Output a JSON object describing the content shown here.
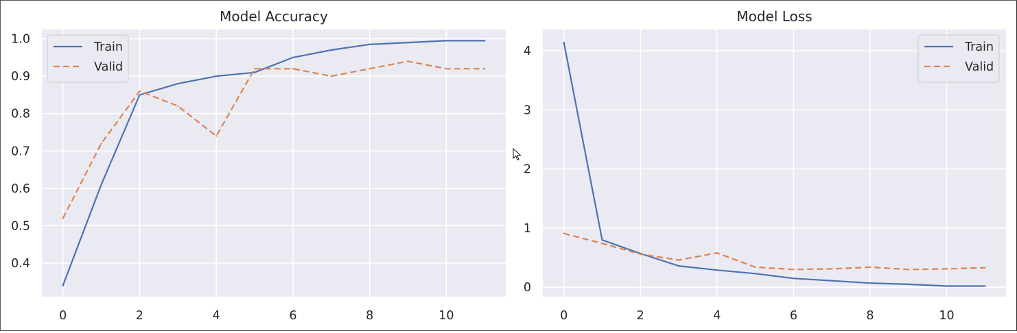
{
  "chart_data": [
    {
      "type": "line",
      "title": "Model Accuracy",
      "xlabel": "",
      "ylabel": "",
      "x": [
        0,
        1,
        2,
        3,
        4,
        5,
        6,
        7,
        8,
        9,
        10,
        11
      ],
      "xlim": [
        -0.55,
        11.55
      ],
      "ylim": [
        0.31,
        1.025
      ],
      "xticks": [
        0,
        2,
        4,
        6,
        8,
        10
      ],
      "yticks": [
        0.4,
        0.5,
        0.6,
        0.7,
        0.8,
        0.9,
        1.0
      ],
      "ytick_labels": [
        "0.4",
        "0.5",
        "0.6",
        "0.7",
        "0.8",
        "0.9",
        "1.0"
      ],
      "grid": true,
      "legend_position": "top-left",
      "series": [
        {
          "name": "Train",
          "color": "#4c72b0",
          "style": "solid",
          "values": [
            0.34,
            0.61,
            0.85,
            0.88,
            0.9,
            0.91,
            0.95,
            0.97,
            0.985,
            0.99,
            0.995,
            0.995
          ]
        },
        {
          "name": "Valid",
          "color": "#dd8452",
          "style": "dashed",
          "values": [
            0.52,
            0.72,
            0.86,
            0.82,
            0.74,
            0.92,
            0.92,
            0.9,
            0.92,
            0.94,
            0.92,
            0.92
          ]
        }
      ]
    },
    {
      "type": "line",
      "title": "Model Loss",
      "xlabel": "",
      "ylabel": "",
      "x": [
        0,
        1,
        2,
        3,
        4,
        5,
        6,
        7,
        8,
        9,
        10,
        11
      ],
      "xlim": [
        -0.55,
        11.55
      ],
      "ylim": [
        -0.16,
        4.36
      ],
      "xticks": [
        0,
        2,
        4,
        6,
        8,
        10
      ],
      "yticks": [
        0,
        1,
        2,
        3,
        4
      ],
      "ytick_labels": [
        "0",
        "1",
        "2",
        "3",
        "4"
      ],
      "grid": true,
      "legend_position": "top-right",
      "series": [
        {
          "name": "Train",
          "color": "#4c72b0",
          "style": "solid",
          "values": [
            4.14,
            0.8,
            0.57,
            0.36,
            0.29,
            0.23,
            0.15,
            0.11,
            0.07,
            0.05,
            0.02,
            0.02
          ]
        },
        {
          "name": "Valid",
          "color": "#dd8452",
          "style": "dashed",
          "values": [
            0.91,
            0.74,
            0.56,
            0.46,
            0.58,
            0.34,
            0.3,
            0.31,
            0.34,
            0.3,
            0.31,
            0.33
          ]
        }
      ]
    }
  ]
}
